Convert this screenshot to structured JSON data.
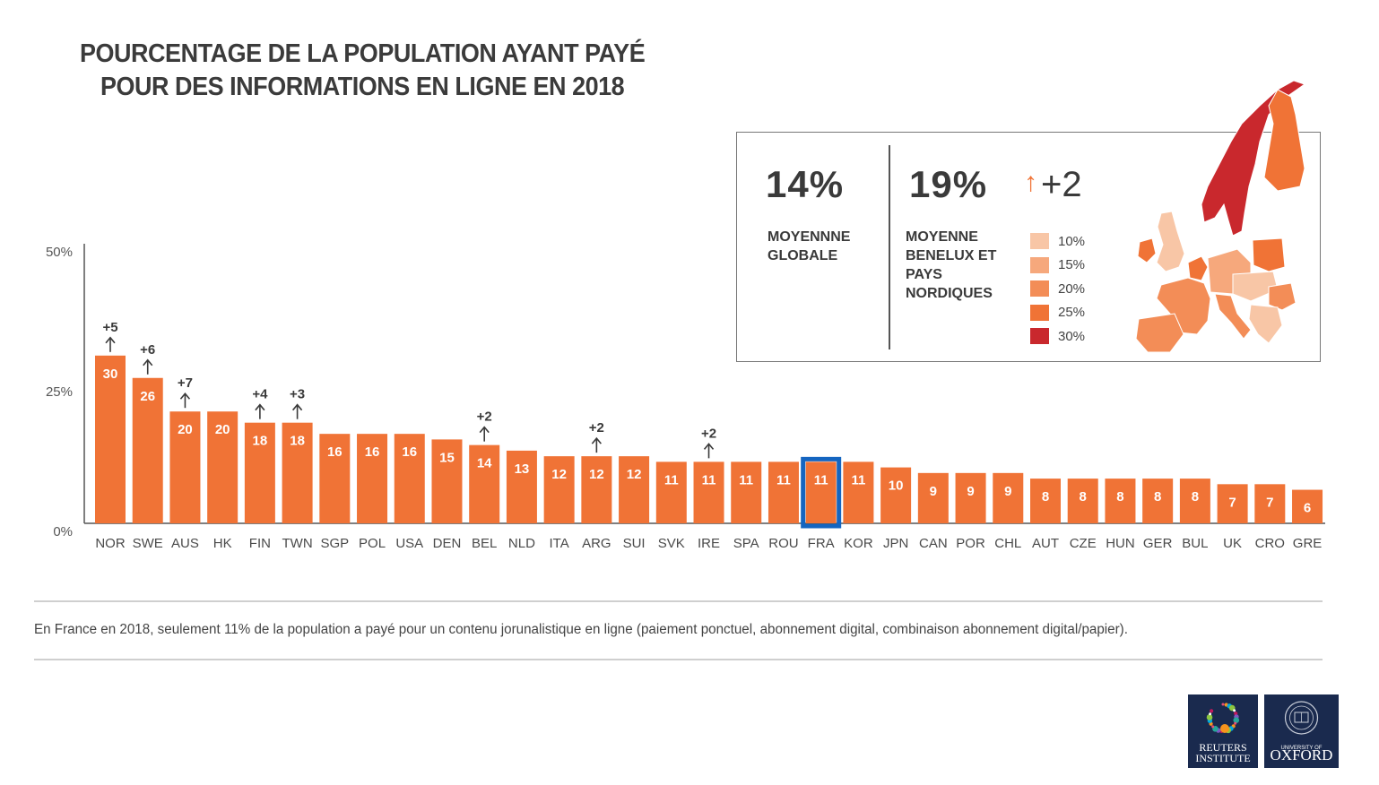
{
  "title": {
    "line1": "POURCENTAGE DE LA POPULATION AYANT PAYÉ",
    "line2": "POUR DES INFORMATIONS EN LIGNE EN 2018"
  },
  "summary": {
    "global_value": "14%",
    "global_label_1": "MOYENNNE",
    "global_label_2": "GLOBALE",
    "regional_value": "19%",
    "regional_change": "+2",
    "regional_change_arrow": "↑",
    "regional_label_1": "MOYENNE",
    "regional_label_2": "BENELUX ET",
    "regional_label_3": "PAYS",
    "regional_label_4": "NORDIQUES"
  },
  "map_legend": [
    {
      "label": "10%",
      "color": "#f8c6a6"
    },
    {
      "label": "15%",
      "color": "#f6a87c"
    },
    {
      "label": "20%",
      "color": "#f38d57"
    },
    {
      "label": "25%",
      "color": "#f07336"
    },
    {
      "label": "30%",
      "color": "#c9282d"
    }
  ],
  "colors": {
    "bar": "#f07336",
    "highlight": "#1565c0",
    "axis": "#555555"
  },
  "chart_data": {
    "type": "bar",
    "title": "POURCENTAGE DE LA POPULATION AYANT PAYÉ POUR DES INFORMATIONS EN LIGNE EN 2018",
    "xlabel": "",
    "ylabel": "",
    "ylim": [
      0,
      50
    ],
    "yticks": [
      0,
      25,
      50
    ],
    "ytick_labels": [
      "0%",
      "25%",
      "50%"
    ],
    "grid": false,
    "highlighted_category": "FRA",
    "categories": [
      "NOR",
      "SWE",
      "AUS",
      "HK",
      "FIN",
      "TWN",
      "SGP",
      "POL",
      "USA",
      "DEN",
      "BEL",
      "NLD",
      "ITA",
      "ARG",
      "SUI",
      "SVK",
      "IRE",
      "SPA",
      "ROU",
      "FRA",
      "KOR",
      "JPN",
      "CAN",
      "POR",
      "CHL",
      "AUT",
      "CZE",
      "HUN",
      "GER",
      "BUL",
      "UK",
      "CRO",
      "GRE"
    ],
    "values": [
      30,
      26,
      20,
      20,
      18,
      18,
      16,
      16,
      16,
      15,
      14,
      13,
      12,
      12,
      12,
      11,
      11,
      11,
      11,
      11,
      11,
      10,
      9,
      9,
      9,
      8,
      8,
      8,
      8,
      8,
      7,
      7,
      6
    ],
    "changes": [
      "+5",
      "+6",
      "+7",
      "",
      "+4",
      "+3",
      "",
      "",
      "",
      "",
      "+2",
      "",
      "",
      "+2",
      "",
      "",
      "+2",
      "",
      "",
      "",
      "",
      "",
      "",
      "",
      "",
      "",
      "",
      "",
      "",
      "",
      "",
      "",
      ""
    ]
  },
  "footnote": "En France en 2018, seulement 11% de la population a payé pour un contenu jorunalistique en ligne (paiement ponctuel, abonnement digital, combinaison abonnement digital/papier).",
  "logos": {
    "reuters_1": "REUTERS",
    "reuters_2": "INSTITUTE",
    "oxford_1": "UNIVERSITY OF",
    "oxford_2": "OXFORD"
  }
}
